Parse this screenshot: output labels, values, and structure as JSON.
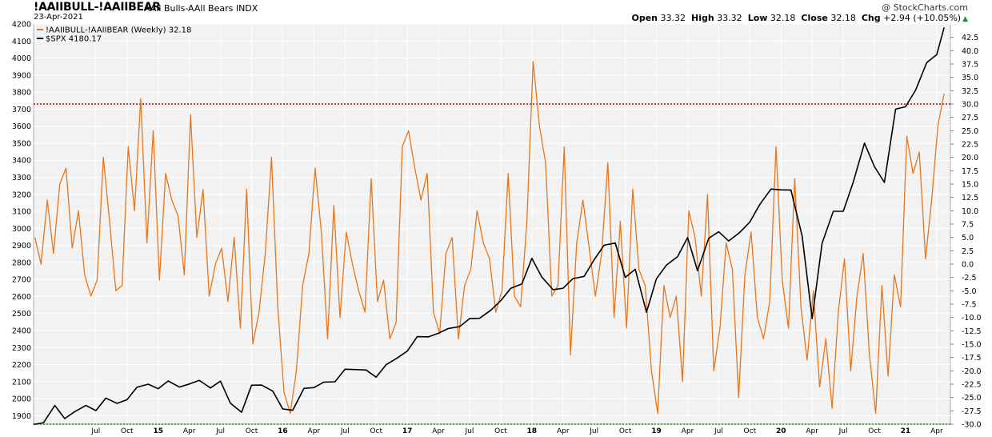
{
  "header": {
    "symbol": "!AAIIBULL-!AAIIBEAR",
    "description": "AAll Bulls-AAll Bears INDX",
    "date": "23-Apr-2021",
    "credit": "@ StockCharts.com",
    "open_label": "Open",
    "open": "33.32",
    "high_label": "High",
    "high": "33.32",
    "low_label": "Low",
    "low": "32.18",
    "close_label": "Close",
    "close": "32.18",
    "chg_label": "Chg",
    "chg": "+2.94 (+10.05%)",
    "chg_icon": "up-triangle-icon"
  },
  "colors": {
    "spread": "#e8751a",
    "spx": "#000000",
    "reference_line": "#c00000",
    "bottom_line": "#2a8c2a",
    "plot_background": "#f2f2f2"
  },
  "chart_data": {
    "type": "line",
    "series": [
      {
        "name": "!AAIIBULL-!AAIIBEAR (Weekly) 32.18",
        "axis": "right",
        "x": [
          2014.01,
          2014.06,
          2014.11,
          2014.16,
          2014.21,
          2014.26,
          2014.31,
          2014.36,
          2014.41,
          2014.46,
          2014.51,
          2014.56,
          2014.61,
          2014.66,
          2014.71,
          2014.76,
          2014.81,
          2014.86,
          2014.91,
          2014.96,
          2015.01,
          2015.06,
          2015.11,
          2015.16,
          2015.21,
          2015.26,
          2015.31,
          2015.36,
          2015.41,
          2015.46,
          2015.51,
          2015.56,
          2015.61,
          2015.66,
          2015.71,
          2015.76,
          2015.81,
          2015.86,
          2015.91,
          2015.96,
          2016.01,
          2016.06,
          2016.11,
          2016.16,
          2016.21,
          2016.26,
          2016.31,
          2016.36,
          2016.41,
          2016.46,
          2016.51,
          2016.56,
          2016.61,
          2016.66,
          2016.71,
          2016.76,
          2016.81,
          2016.86,
          2016.91,
          2016.96,
          2017.01,
          2017.06,
          2017.11,
          2017.16,
          2017.21,
          2017.26,
          2017.31,
          2017.36,
          2017.41,
          2017.46,
          2017.51,
          2017.56,
          2017.61,
          2017.66,
          2017.71,
          2017.76,
          2017.81,
          2017.86,
          2017.91,
          2017.96,
          2018.01,
          2018.06,
          2018.11,
          2018.16,
          2018.21,
          2018.26,
          2018.31,
          2018.36,
          2018.41,
          2018.46,
          2018.51,
          2018.56,
          2018.61,
          2018.66,
          2018.71,
          2018.76,
          2018.81,
          2018.86,
          2018.91,
          2018.96,
          2019.01,
          2019.06,
          2019.11,
          2019.16,
          2019.21,
          2019.26,
          2019.31,
          2019.36,
          2019.41,
          2019.46,
          2019.51,
          2019.56,
          2019.61,
          2019.66,
          2019.71,
          2019.76,
          2019.81,
          2019.86,
          2019.91,
          2019.96,
          2020.01,
          2020.06,
          2020.11,
          2020.16,
          2020.21,
          2020.26,
          2020.31,
          2020.36,
          2020.41,
          2020.46,
          2020.51,
          2020.56,
          2020.61,
          2020.66,
          2020.71,
          2020.76,
          2020.81,
          2020.86,
          2020.91,
          2020.96,
          2021.01,
          2021.06,
          2021.11,
          2021.16,
          2021.21,
          2021.26,
          2021.31
        ],
        "values": [
          5,
          0,
          12,
          2,
          15,
          18,
          3,
          10,
          -2,
          -6,
          -3,
          20,
          8,
          -5,
          -4,
          22,
          10,
          31,
          4,
          25,
          -3,
          17,
          12,
          9,
          -2,
          28,
          5,
          14,
          -6,
          0,
          3,
          -7,
          5,
          -12,
          14,
          -15,
          -9,
          2,
          20,
          -8,
          -24,
          -28,
          -20,
          -4,
          2,
          18,
          6,
          -14,
          11,
          -10,
          6,
          0,
          -5,
          -9,
          16,
          -7,
          -3,
          -14,
          -11,
          22,
          25,
          18,
          12,
          17,
          -9,
          -13,
          2,
          5,
          -14,
          -4,
          -1,
          10,
          4,
          1,
          -9,
          -5,
          17,
          -6,
          -8,
          8,
          38,
          26,
          19,
          -6,
          -4,
          22,
          -17,
          4,
          12,
          3,
          -6,
          2,
          19,
          -10,
          8,
          -12,
          14,
          -1,
          -4,
          -20,
          -28,
          -4,
          -10,
          -6,
          -22,
          10,
          5,
          -6,
          13,
          -20,
          -12,
          4,
          -1,
          -25,
          -2,
          6,
          -10,
          -14,
          -7,
          22,
          -3,
          -12,
          16,
          -8,
          -18,
          -5,
          -23,
          -14,
          -27,
          -9,
          1,
          -20,
          -6,
          2,
          -17,
          -28,
          -4,
          -21,
          -2,
          -8,
          24,
          17,
          21,
          1,
          12,
          26,
          32
        ],
        "color": "#e8751a"
      },
      {
        "name": "$SPX 4180.17",
        "axis": "left",
        "x": [
          2014.0,
          2014.08,
          2014.17,
          2014.25,
          2014.33,
          2014.42,
          2014.5,
          2014.58,
          2014.67,
          2014.75,
          2014.83,
          2014.92,
          2015.0,
          2015.08,
          2015.17,
          2015.25,
          2015.33,
          2015.42,
          2015.5,
          2015.58,
          2015.67,
          2015.75,
          2015.83,
          2015.92,
          2016.0,
          2016.08,
          2016.17,
          2016.25,
          2016.33,
          2016.42,
          2016.5,
          2016.58,
          2016.67,
          2016.75,
          2016.83,
          2016.92,
          2017.0,
          2017.08,
          2017.17,
          2017.25,
          2017.33,
          2017.42,
          2017.5,
          2017.58,
          2017.67,
          2017.75,
          2017.83,
          2017.92,
          2018.0,
          2018.08,
          2018.17,
          2018.25,
          2018.33,
          2018.42,
          2018.5,
          2018.58,
          2018.67,
          2018.75,
          2018.83,
          2018.92,
          2019.0,
          2019.08,
          2019.17,
          2019.25,
          2019.33,
          2019.42,
          2019.5,
          2019.58,
          2019.67,
          2019.75,
          2019.83,
          2019.92,
          2020.0,
          2020.08,
          2020.17,
          2020.25,
          2020.33,
          2020.42,
          2020.5,
          2020.58,
          2020.67,
          2020.75,
          2020.83,
          2020.92,
          2021.0,
          2021.08,
          2021.17,
          2021.25,
          2021.31
        ],
        "values": [
          1848,
          1859,
          1960,
          1883,
          1924,
          1960,
          1930,
          2003,
          1972,
          1994,
          2067,
          2085,
          2058,
          2104,
          2068,
          2086,
          2107,
          2063,
          2103,
          1973,
          1920,
          2079,
          2080,
          2044,
          1940,
          1932,
          2060,
          2065,
          2097,
          2099,
          2173,
          2171,
          2168,
          2126,
          2199,
          2239,
          2279,
          2364,
          2363,
          2384,
          2412,
          2423,
          2470,
          2472,
          2519,
          2575,
          2648,
          2674,
          2824,
          2714,
          2640,
          2648,
          2705,
          2718,
          2816,
          2901,
          2914,
          2712,
          2760,
          2507,
          2704,
          2784,
          2834,
          2946,
          2752,
          2942,
          2980,
          2926,
          2977,
          3037,
          3141,
          3231,
          3226,
          3225,
          2954,
          2470,
          2912,
          3100,
          3100,
          3271,
          3500,
          3363,
          3270,
          3700,
          3714,
          3811,
          3973,
          4020,
          4180
        ],
        "color": "#000000"
      }
    ],
    "left_axis": {
      "ticks": [
        "1900",
        "2000",
        "2100",
        "2200",
        "2300",
        "2400",
        "2500",
        "2600",
        "2700",
        "2800",
        "2900",
        "3000",
        "3100",
        "3200",
        "3300",
        "3400",
        "3500",
        "3600",
        "3700",
        "3800",
        "3900",
        "4000",
        "4100",
        "4200"
      ],
      "range": [
        1850,
        4200
      ]
    },
    "right_axis": {
      "ticks": [
        "42.5",
        "40.0",
        "37.5",
        "35.0",
        "32.5",
        "30.0",
        "27.5",
        "25.0",
        "22.5",
        "20.0",
        "17.5",
        "15.0",
        "12.5",
        "10.0",
        "7.5",
        "5.0",
        "2.5",
        "0.0",
        "-2.5",
        "-5.0",
        "-7.5",
        "-10.0",
        "-12.5",
        "-15.0",
        "-17.5",
        "-20.0",
        "-22.5",
        "-25.0",
        "-27.5",
        "-30.0"
      ],
      "range": [
        -30,
        45
      ]
    },
    "x_range": [
      2014.0,
      2021.36
    ],
    "x_ticks": [
      {
        "label": "Jul",
        "x": 2014.5,
        "bold": false
      },
      {
        "label": "Oct",
        "x": 2014.75,
        "bold": false
      },
      {
        "label": "15",
        "x": 2015.0,
        "bold": true
      },
      {
        "label": "Apr",
        "x": 2015.25,
        "bold": false
      },
      {
        "label": "Jul",
        "x": 2015.5,
        "bold": false
      },
      {
        "label": "Oct",
        "x": 2015.75,
        "bold": false
      },
      {
        "label": "16",
        "x": 2016.0,
        "bold": true
      },
      {
        "label": "Apr",
        "x": 2016.25,
        "bold": false
      },
      {
        "label": "Jul",
        "x": 2016.5,
        "bold": false
      },
      {
        "label": "Oct",
        "x": 2016.75,
        "bold": false
      },
      {
        "label": "17",
        "x": 2017.0,
        "bold": true
      },
      {
        "label": "Apr",
        "x": 2017.25,
        "bold": false
      },
      {
        "label": "Jul",
        "x": 2017.5,
        "bold": false
      },
      {
        "label": "Oct",
        "x": 2017.75,
        "bold": false
      },
      {
        "label": "18",
        "x": 2018.0,
        "bold": true
      },
      {
        "label": "Apr",
        "x": 2018.25,
        "bold": false
      },
      {
        "label": "Jul",
        "x": 2018.5,
        "bold": false
      },
      {
        "label": "Oct",
        "x": 2018.75,
        "bold": false
      },
      {
        "label": "19",
        "x": 2019.0,
        "bold": true
      },
      {
        "label": "Apr",
        "x": 2019.25,
        "bold": false
      },
      {
        "label": "Jul",
        "x": 2019.5,
        "bold": false
      },
      {
        "label": "Oct",
        "x": 2019.75,
        "bold": false
      },
      {
        "label": "20",
        "x": 2020.0,
        "bold": true
      },
      {
        "label": "Apr",
        "x": 2020.25,
        "bold": false
      },
      {
        "label": "Jul",
        "x": 2020.5,
        "bold": false
      },
      {
        "label": "Oct",
        "x": 2020.75,
        "bold": false
      },
      {
        "label": "21",
        "x": 2021.0,
        "bold": true
      },
      {
        "label": "Apr",
        "x": 2021.25,
        "bold": false
      }
    ],
    "reference_lines": [
      {
        "axis": "right",
        "value": 30.0,
        "style": "dotted",
        "color": "#c00000"
      },
      {
        "axis": "right",
        "value": -30.0,
        "style": "dotted",
        "color": "#2a8c2a"
      }
    ],
    "grid": true,
    "legend": "top-left"
  }
}
